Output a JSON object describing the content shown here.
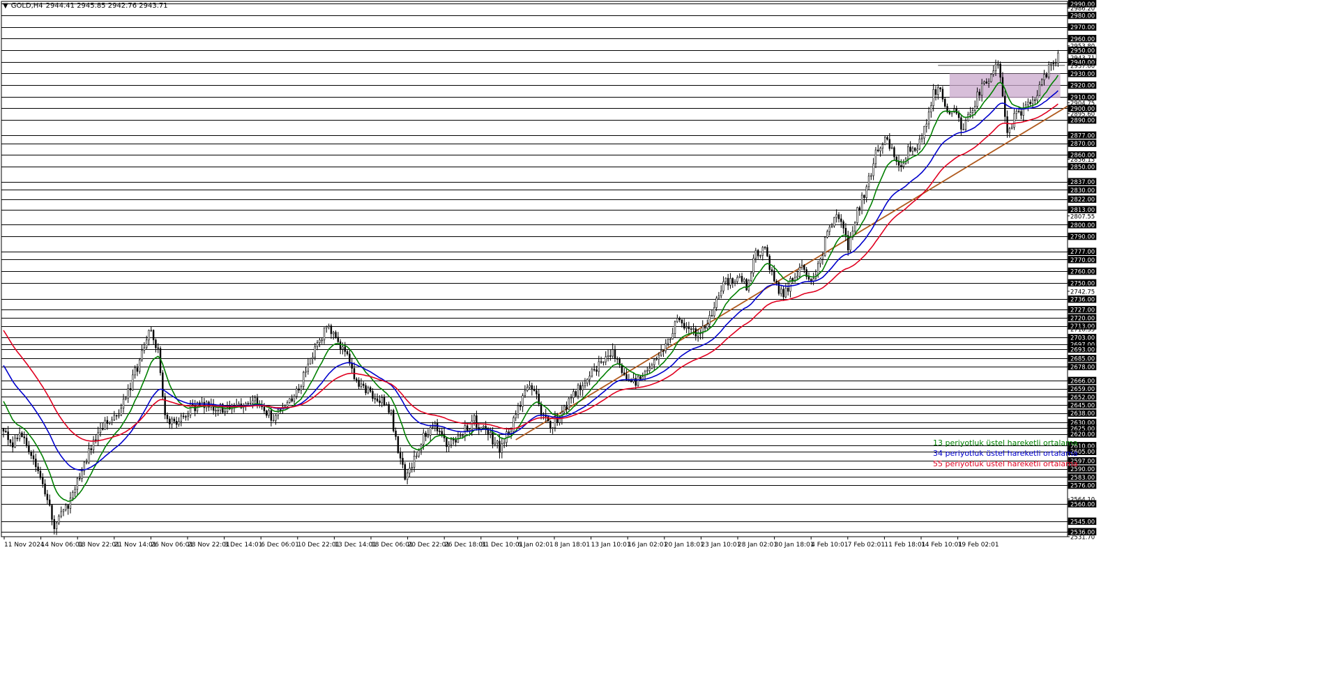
{
  "header": {
    "arrow": "▼",
    "symbol": "GOLD,H4",
    "ohlc": "2944.41 2945.85 2942.76 2943.71"
  },
  "chart_data": {
    "type": "candlestick",
    "title": "GOLD,H4",
    "last_price": 2943.71,
    "ylim": [
      2531.7,
      2992
    ],
    "x_labels": [
      "11 Nov 2024",
      "14 Nov 06:01",
      "18 Nov 22:01",
      "21 Nov 14:01",
      "26 Nov 06:01",
      "28 Nov 22:01",
      "3 Dec 14:01",
      "6 Dec 06:01",
      "10 Dec 22:01",
      "13 Dec 14:01",
      "18 Dec 06:01",
      "20 Dec 22:01",
      "26 Dec 18:01",
      "31 Dec 10:01",
      "6 Jan 02:01",
      "8 Jan 18:01",
      "13 Jan 10:01",
      "16 Jan 02:01",
      "20 Jan 18:01",
      "23 Jan 10:01",
      "28 Jan 02:01",
      "30 Jan 18:01",
      "4 Feb 10:01",
      "7 Feb 02:01",
      "11 Feb 18:01",
      "14 Feb 10:01",
      "19 Feb 02:01"
    ],
    "price_levels": [
      2990.0,
      2980.0,
      2970.0,
      2960.0,
      2950.0,
      2940.0,
      2930.0,
      2920.0,
      2910.0,
      2900.0,
      2890.0,
      2877.0,
      2870.0,
      2860.0,
      2850.0,
      2837.0,
      2830.0,
      2822.0,
      2813.0,
      2800.0,
      2790.0,
      2777.0,
      2770.0,
      2760.0,
      2750.0,
      2736.0,
      2727.0,
      2720.0,
      2713.0,
      2703.0,
      2697.0,
      2693.0,
      2685.0,
      2678.0,
      2666.0,
      2659.0,
      2652.0,
      2645.0,
      2638.0,
      2630.0,
      2625.0,
      2620.0,
      2610.0,
      2605.0,
      2597.0,
      2590.0,
      2583.0,
      2576.0,
      2560.0,
      2545.0,
      2536.0
    ],
    "axis_labels": [
      "2990.00",
      "2986.20",
      "2980.00",
      "2970.00",
      "2960.00",
      "2953.80",
      "2950.00",
      "2943.71",
      "2940.00",
      "2937.00",
      "2930.00",
      "2920.00",
      "2910.00",
      "2904.75",
      "2900.00",
      "2895.60",
      "2890.00",
      "2877.00",
      "2870.00",
      "2860.00",
      "2856.15",
      "2850.00",
      "2837.00",
      "2830.00",
      "2822.00",
      "2813.00",
      "2807.55",
      "2800.00",
      "2790.00",
      "2777.00",
      "2770.00",
      "2760.00",
      "2750.00",
      "2742.75",
      "2736.00",
      "2727.00",
      "2720.00",
      "2713.00",
      "2710.35",
      "2703.00",
      "2697.00",
      "2693.00",
      "2685.00",
      "2678.00",
      "2666.00",
      "2659.00",
      "2652.00",
      "2645.00",
      "2638.00",
      "2630.00",
      "2625.00",
      "2620.00",
      "2610.00",
      "2605.00",
      "2597.00",
      "2590.00",
      "2583.00",
      "2576.00",
      "2564.10",
      "2560.00",
      "2545.00",
      "2536.00",
      "2531.70"
    ],
    "key_points": [
      {
        "i": 0,
        "p": 2625
      },
      {
        "i": 4,
        "p": 2610
      },
      {
        "i": 8,
        "p": 2620
      },
      {
        "i": 14,
        "p": 2595
      },
      {
        "i": 18,
        "p": 2570
      },
      {
        "i": 22,
        "p": 2542
      },
      {
        "i": 27,
        "p": 2555
      },
      {
        "i": 32,
        "p": 2578
      },
      {
        "i": 38,
        "p": 2610
      },
      {
        "i": 44,
        "p": 2628
      },
      {
        "i": 50,
        "p": 2640
      },
      {
        "i": 55,
        "p": 2662
      },
      {
        "i": 60,
        "p": 2688
      },
      {
        "i": 64,
        "p": 2712
      },
      {
        "i": 67,
        "p": 2690
      },
      {
        "i": 70,
        "p": 2635
      },
      {
        "i": 75,
        "p": 2625
      },
      {
        "i": 80,
        "p": 2640
      },
      {
        "i": 86,
        "p": 2648
      },
      {
        "i": 92,
        "p": 2640
      },
      {
        "i": 98,
        "p": 2644
      },
      {
        "i": 104,
        "p": 2646
      },
      {
        "i": 110,
        "p": 2648
      },
      {
        "i": 116,
        "p": 2634
      },
      {
        "i": 122,
        "p": 2642
      },
      {
        "i": 128,
        "p": 2660
      },
      {
        "i": 134,
        "p": 2690
      },
      {
        "i": 140,
        "p": 2712
      },
      {
        "i": 144,
        "p": 2705
      },
      {
        "i": 148,
        "p": 2690
      },
      {
        "i": 152,
        "p": 2670
      },
      {
        "i": 156,
        "p": 2660
      },
      {
        "i": 160,
        "p": 2655
      },
      {
        "i": 164,
        "p": 2648
      },
      {
        "i": 168,
        "p": 2640
      },
      {
        "i": 171,
        "p": 2600
      },
      {
        "i": 174,
        "p": 2585
      },
      {
        "i": 178,
        "p": 2598
      },
      {
        "i": 182,
        "p": 2618
      },
      {
        "i": 187,
        "p": 2628
      },
      {
        "i": 192,
        "p": 2612
      },
      {
        "i": 198,
        "p": 2620
      },
      {
        "i": 204,
        "p": 2632
      },
      {
        "i": 210,
        "p": 2620
      },
      {
        "i": 215,
        "p": 2608
      },
      {
        "i": 220,
        "p": 2625
      },
      {
        "i": 225,
        "p": 2650
      },
      {
        "i": 229,
        "p": 2662
      },
      {
        "i": 233,
        "p": 2640
      },
      {
        "i": 237,
        "p": 2625
      },
      {
        "i": 242,
        "p": 2640
      },
      {
        "i": 248,
        "p": 2655
      },
      {
        "i": 254,
        "p": 2670
      },
      {
        "i": 260,
        "p": 2685
      },
      {
        "i": 264,
        "p": 2690
      },
      {
        "i": 268,
        "p": 2672
      },
      {
        "i": 272,
        "p": 2664
      },
      {
        "i": 276,
        "p": 2668
      },
      {
        "i": 282,
        "p": 2680
      },
      {
        "i": 288,
        "p": 2700
      },
      {
        "i": 292,
        "p": 2716
      },
      {
        "i": 296,
        "p": 2712
      },
      {
        "i": 300,
        "p": 2706
      },
      {
        "i": 304,
        "p": 2712
      },
      {
        "i": 308,
        "p": 2730
      },
      {
        "i": 312,
        "p": 2750
      },
      {
        "i": 318,
        "p": 2756
      },
      {
        "i": 322,
        "p": 2748
      },
      {
        "i": 326,
        "p": 2776
      },
      {
        "i": 330,
        "p": 2780
      },
      {
        "i": 334,
        "p": 2750
      },
      {
        "i": 338,
        "p": 2738
      },
      {
        "i": 342,
        "p": 2755
      },
      {
        "i": 346,
        "p": 2762
      },
      {
        "i": 350,
        "p": 2748
      },
      {
        "i": 354,
        "p": 2770
      },
      {
        "i": 358,
        "p": 2800
      },
      {
        "i": 362,
        "p": 2806
      },
      {
        "i": 366,
        "p": 2782
      },
      {
        "i": 370,
        "p": 2812
      },
      {
        "i": 374,
        "p": 2830
      },
      {
        "i": 378,
        "p": 2860
      },
      {
        "i": 382,
        "p": 2872
      },
      {
        "i": 386,
        "p": 2862
      },
      {
        "i": 389,
        "p": 2848
      },
      {
        "i": 392,
        "p": 2866
      },
      {
        "i": 396,
        "p": 2868
      },
      {
        "i": 400,
        "p": 2890
      },
      {
        "i": 403,
        "p": 2912
      },
      {
        "i": 406,
        "p": 2918
      },
      {
        "i": 409,
        "p": 2895
      },
      {
        "i": 412,
        "p": 2898
      },
      {
        "i": 416,
        "p": 2880
      },
      {
        "i": 420,
        "p": 2902
      },
      {
        "i": 424,
        "p": 2918
      },
      {
        "i": 428,
        "p": 2928
      },
      {
        "i": 431,
        "p": 2937
      },
      {
        "i": 433,
        "p": 2912
      },
      {
        "i": 435,
        "p": 2880
      },
      {
        "i": 438,
        "p": 2892
      },
      {
        "i": 442,
        "p": 2900
      },
      {
        "i": 446,
        "p": 2905
      },
      {
        "i": 449,
        "p": 2918
      },
      {
        "i": 452,
        "p": 2930
      },
      {
        "i": 455,
        "p": 2940
      },
      {
        "i": 457,
        "p": 2943.71
      }
    ],
    "series": [
      {
        "name": "13 periyotluk üstel hareketli ortalama",
        "color": "#008000",
        "period": 13
      },
      {
        "name": "34 periyotluk üstel hareketli ortalama",
        "color": "#0000cc",
        "period": 34
      },
      {
        "name": "55 periyotluk üstel hareketli ortalama",
        "color": "#e00020",
        "period": 55
      }
    ],
    "trendline": {
      "color": "#b05a1e",
      "start": {
        "i": 222,
        "p": 2615
      },
      "end": {
        "i": 472,
        "p": 2915
      }
    },
    "zone": {
      "color": "#c9a8cc",
      "from_i": 410,
      "to_i": 458,
      "top": 2930,
      "bottom": 2909
    },
    "resistance_line": {
      "i_from": 405,
      "i_to": 460,
      "p": 2937
    }
  }
}
